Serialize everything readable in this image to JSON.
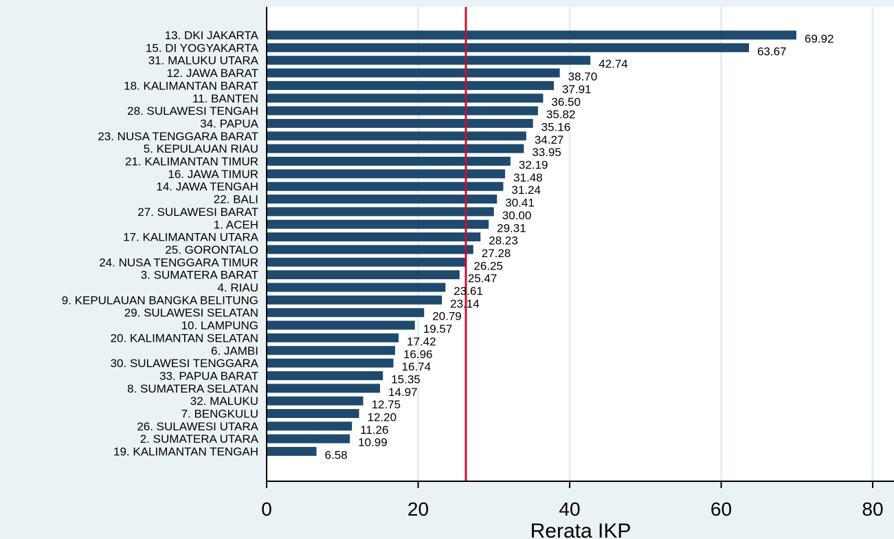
{
  "chart_data": {
    "type": "bar",
    "orientation": "horizontal",
    "title": "",
    "xlabel": "Rerata IKP",
    "ylabel": "",
    "xlim": [
      0,
      80
    ],
    "xticks": [
      0,
      20,
      40,
      60,
      80
    ],
    "grid": true,
    "reference_line": 26.3,
    "colors": {
      "bar": "#1f4a6e",
      "reference_line": "#c8102e",
      "plot_background": "#ffffff",
      "page_background": "#eaf2f3",
      "grid": "#e4eef2"
    },
    "categories": [
      "13. DKI JAKARTA",
      "15. DI YOGYAKARTA",
      "31. MALUKU UTARA",
      "12. JAWA BARAT",
      "18. KALIMANTAN BARAT",
      "11. BANTEN",
      "28. SULAWESI TENGAH",
      "34. PAPUA",
      "23. NUSA TENGGARA BARAT",
      "5. KEPULAUAN RIAU",
      "21. KALIMANTAN TIMUR",
      "16. JAWA TIMUR",
      "14. JAWA TENGAH",
      "22. BALI",
      "27. SULAWESI BARAT",
      "1. ACEH",
      "17. KALIMANTAN UTARA",
      "25. GORONTALO",
      "24. NUSA TENGGARA TIMUR",
      "3. SUMATERA BARAT",
      "4. RIAU",
      "9. KEPULAUAN BANGKA BELITUNG",
      "29. SULAWESI SELATAN",
      "10. LAMPUNG",
      "20. KALIMANTAN SELATAN",
      "6. JAMBI",
      "30. SULAWESI TENGGARA",
      "33. PAPUA BARAT",
      "8. SUMATERA SELATAN",
      "32. MALUKU",
      "7. BENGKULU",
      "26. SULAWESI UTARA",
      "2. SUMATERA UTARA",
      "19. KALIMANTAN TENGAH"
    ],
    "values": [
      69.92,
      63.67,
      42.74,
      38.7,
      37.91,
      36.5,
      35.82,
      35.16,
      34.27,
      33.95,
      32.19,
      31.48,
      31.24,
      30.41,
      30.0,
      29.31,
      28.23,
      27.28,
      26.25,
      25.47,
      23.61,
      23.14,
      20.79,
      19.57,
      17.42,
      16.96,
      16.74,
      15.35,
      14.97,
      12.75,
      12.2,
      11.26,
      10.99,
      6.58
    ],
    "value_labels": [
      "69.92",
      "63.67",
      "42.74",
      "38.70",
      "37.91",
      "36.50",
      "35.82",
      "35.16",
      "34.27",
      "33.95",
      "32.19",
      "31.48",
      "31.24",
      "30.41",
      "30.00",
      "29.31",
      "28.23",
      "27.28",
      "26.25",
      "25.47",
      "23.61",
      "23.14",
      "20.79",
      "19.57",
      "17.42",
      "16.96",
      "16.74",
      "15.35",
      "14.97",
      "12.75",
      "12.20",
      "11.26",
      "10.99",
      "6.58"
    ]
  }
}
